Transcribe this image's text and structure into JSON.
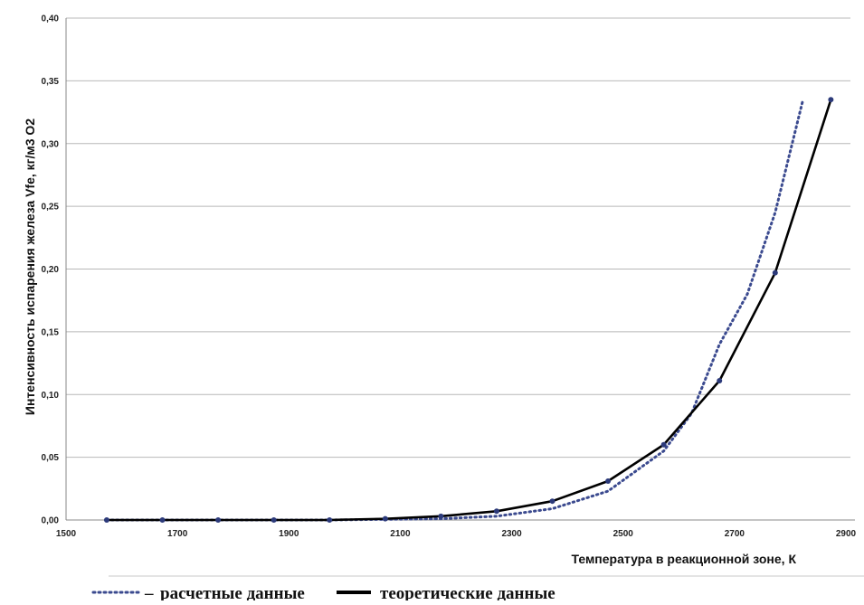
{
  "chart_data": {
    "type": "line",
    "xlabel": "Температура в реакционной зоне, К",
    "ylabel": "Интенсивность испарения железа Vfe, кг/м3 О2",
    "xlim": [
      1500,
      2900
    ],
    "ylim": [
      0,
      0.4
    ],
    "x_ticks": [
      1500,
      1700,
      1900,
      2100,
      2300,
      2500,
      2700,
      2900
    ],
    "x_tick_labels": [
      "1500",
      "1700",
      "1900",
      "2100",
      "2300",
      "2500",
      "2700",
      "2900"
    ],
    "y_ticks": [
      0,
      0.05,
      0.1,
      0.15,
      0.2,
      0.25,
      0.3,
      0.35,
      0.4
    ],
    "y_tick_labels": [
      "0,00",
      "0,05",
      "0,10",
      "0,15",
      "0,20",
      "0,25",
      "0,30",
      "0,35",
      "0,40"
    ],
    "grid": "horizontal",
    "legend_position": "bottom",
    "series": [
      {
        "name": "расчетные данные",
        "style": "dotted",
        "color": "#3b4a8f",
        "x": [
          1573,
          1673,
          1773,
          1873,
          1973,
          2073,
          2173,
          2273,
          2373,
          2473,
          2573,
          2623,
          2673,
          2723,
          2773,
          2823
        ],
        "y": [
          0,
          0,
          0,
          0,
          0,
          0.0005,
          0.001,
          0.003,
          0.009,
          0.023,
          0.055,
          0.085,
          0.14,
          0.18,
          0.245,
          0.335
        ]
      },
      {
        "name": "теоретические данные",
        "style": "solid",
        "color": "#000000",
        "marker_color": "#2c3a7a",
        "x": [
          1573,
          1673,
          1773,
          1873,
          1973,
          2073,
          2173,
          2273,
          2373,
          2473,
          2573,
          2673,
          2773,
          2873
        ],
        "y": [
          0,
          0,
          0,
          0,
          0,
          0.001,
          0.003,
          0.007,
          0.015,
          0.031,
          0.06,
          0.111,
          0.197,
          0.335
        ]
      }
    ]
  }
}
